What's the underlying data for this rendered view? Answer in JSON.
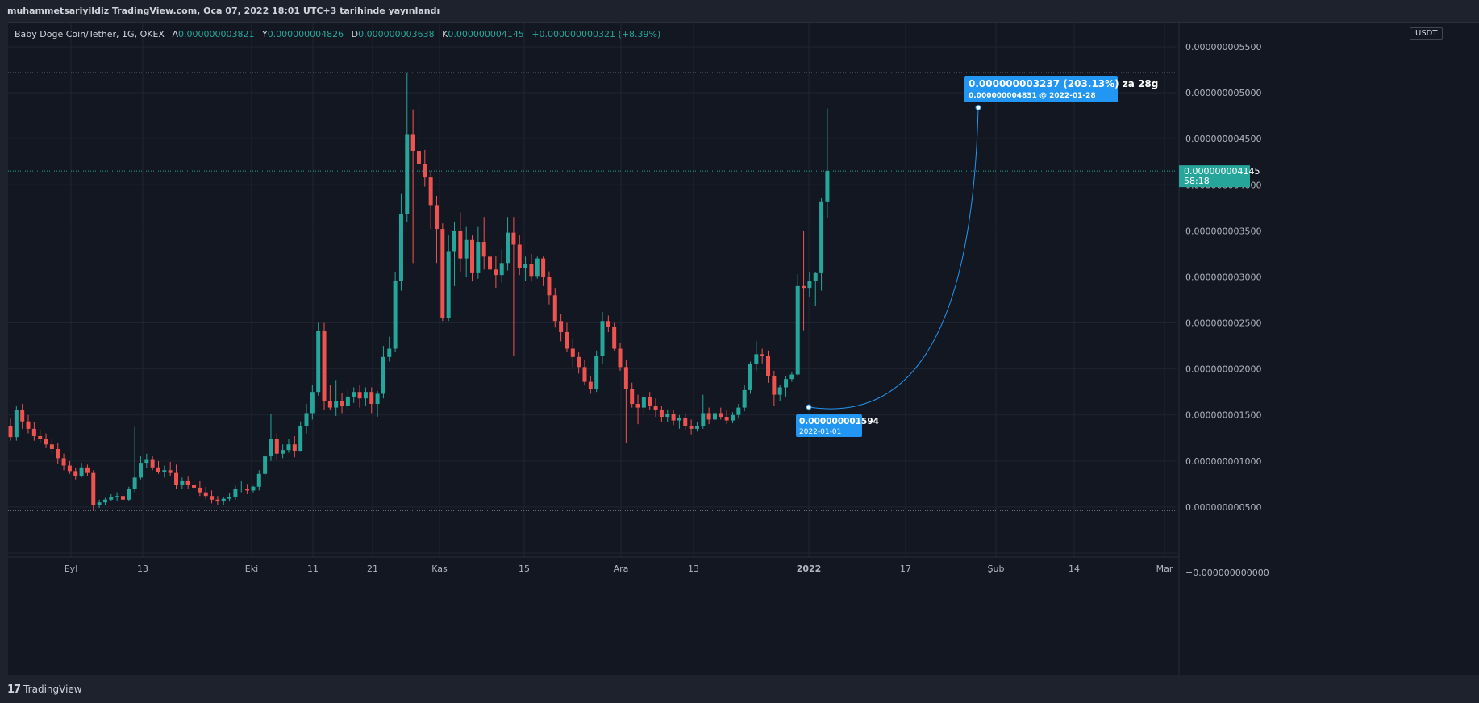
{
  "header": {
    "published_text": "muhammetsariyildiz TradingView.com, Oca 07, 2022 18:01 UTC+3 tarihinde yayınlandı"
  },
  "legend": {
    "symbol": "Baby Doge Coin/Tether, 1G, OKEX",
    "open_label": "A",
    "open": "0.000000003821",
    "high_label": "Y",
    "high": "0.000000004826",
    "low_label": "D",
    "low": "0.000000003638",
    "close_label": "K",
    "close": "0.000000004145",
    "change": "+0.000000000321 (+8.39%)"
  },
  "currency_label": "USDT",
  "footer": {
    "brand": "TradingView"
  },
  "colors": {
    "up": "#26a69a",
    "down": "#ef5350",
    "background": "#131722",
    "grid": "#1f2430",
    "measure": "#2196f3",
    "price_tag": "#26a69a"
  },
  "chart_data": {
    "type": "candlestick",
    "title": "Baby Doge Coin/Tether, 1G, OKEX",
    "x_axis_labels": [
      "Eyl",
      "13",
      "Eki",
      "11",
      "21",
      "Kas",
      "15",
      "Ara",
      "13",
      "2022",
      "17",
      "Şub",
      "14",
      "Mar"
    ],
    "y_axis_labels": [
      "0.000000005500",
      "0.000000005000",
      "0.000000004500",
      "0.000000004000",
      "0.000000003500",
      "0.000000003000",
      "0.000000002500",
      "0.000000002000",
      "0.000000001500",
      "0.000000001000",
      "0.000000000500",
      "−0.000000000000"
    ],
    "y_range_e9": [
      -0.04,
      5.8
    ],
    "last_price": {
      "value": "0.000000004145",
      "countdown": "58:18"
    },
    "high_line_e9": 5.22,
    "low_line_e9": 0.46,
    "ohlc_e9": [
      [
        1.38,
        1.46,
        1.22,
        1.26
      ],
      [
        1.26,
        1.6,
        1.22,
        1.55
      ],
      [
        1.55,
        1.62,
        1.35,
        1.43
      ],
      [
        1.43,
        1.5,
        1.3,
        1.35
      ],
      [
        1.35,
        1.42,
        1.22,
        1.27
      ],
      [
        1.27,
        1.34,
        1.2,
        1.24
      ],
      [
        1.24,
        1.3,
        1.14,
        1.18
      ],
      [
        1.18,
        1.25,
        1.08,
        1.13
      ],
      [
        1.13,
        1.2,
        0.97,
        1.03
      ],
      [
        1.03,
        1.08,
        0.9,
        0.95
      ],
      [
        0.95,
        1.0,
        0.86,
        0.89
      ],
      [
        0.89,
        0.92,
        0.8,
        0.84
      ],
      [
        0.84,
        0.98,
        0.82,
        0.93
      ],
      [
        0.93,
        0.96,
        0.84,
        0.87
      ],
      [
        0.87,
        0.9,
        0.47,
        0.52
      ],
      [
        0.52,
        0.58,
        0.49,
        0.55
      ],
      [
        0.55,
        0.6,
        0.52,
        0.58
      ],
      [
        0.58,
        0.64,
        0.56,
        0.61
      ],
      [
        0.61,
        0.66,
        0.57,
        0.62
      ],
      [
        0.62,
        0.65,
        0.55,
        0.58
      ],
      [
        0.58,
        0.72,
        0.56,
        0.7
      ],
      [
        0.7,
        1.37,
        0.66,
        0.82
      ],
      [
        0.82,
        1.05,
        0.8,
        0.98
      ],
      [
        0.98,
        1.08,
        0.92,
        1.02
      ],
      [
        1.02,
        1.05,
        0.9,
        0.93
      ],
      [
        0.93,
        1.0,
        0.86,
        0.88
      ],
      [
        0.88,
        0.95,
        0.82,
        0.9
      ],
      [
        0.9,
        0.99,
        0.84,
        0.87
      ],
      [
        0.87,
        0.96,
        0.7,
        0.74
      ],
      [
        0.74,
        0.82,
        0.7,
        0.78
      ],
      [
        0.78,
        0.83,
        0.7,
        0.74
      ],
      [
        0.74,
        0.8,
        0.68,
        0.71
      ],
      [
        0.71,
        0.78,
        0.62,
        0.66
      ],
      [
        0.66,
        0.72,
        0.58,
        0.62
      ],
      [
        0.62,
        0.68,
        0.54,
        0.58
      ],
      [
        0.58,
        0.62,
        0.52,
        0.56
      ],
      [
        0.56,
        0.61,
        0.52,
        0.59
      ],
      [
        0.59,
        0.65,
        0.56,
        0.61
      ],
      [
        0.61,
        0.73,
        0.58,
        0.7
      ],
      [
        0.7,
        0.78,
        0.66,
        0.7
      ],
      [
        0.7,
        0.75,
        0.64,
        0.68
      ],
      [
        0.68,
        0.73,
        0.66,
        0.72
      ],
      [
        0.72,
        0.9,
        0.68,
        0.86
      ],
      [
        0.86,
        1.06,
        0.83,
        1.05
      ],
      [
        1.05,
        1.51,
        1.0,
        1.24
      ],
      [
        1.24,
        1.3,
        1.02,
        1.08
      ],
      [
        1.08,
        1.18,
        1.03,
        1.12
      ],
      [
        1.12,
        1.24,
        1.09,
        1.18
      ],
      [
        1.18,
        1.27,
        1.04,
        1.11
      ],
      [
        1.11,
        1.43,
        1.1,
        1.38
      ],
      [
        1.38,
        1.62,
        1.3,
        1.52
      ],
      [
        1.52,
        1.83,
        1.45,
        1.75
      ],
      [
        1.75,
        2.5,
        1.71,
        2.41
      ],
      [
        2.41,
        2.5,
        1.55,
        1.65
      ],
      [
        1.65,
        1.83,
        1.55,
        1.58
      ],
      [
        1.58,
        1.88,
        1.49,
        1.65
      ],
      [
        1.65,
        1.74,
        1.52,
        1.6
      ],
      [
        1.6,
        1.78,
        1.55,
        1.7
      ],
      [
        1.7,
        1.8,
        1.63,
        1.75
      ],
      [
        1.75,
        1.82,
        1.58,
        1.68
      ],
      [
        1.68,
        1.8,
        1.6,
        1.75
      ],
      [
        1.75,
        1.8,
        1.52,
        1.62
      ],
      [
        1.62,
        1.76,
        1.48,
        1.73
      ],
      [
        1.73,
        2.25,
        1.68,
        2.13
      ],
      [
        2.13,
        2.35,
        2.08,
        2.22
      ],
      [
        2.22,
        3.05,
        2.18,
        2.96
      ],
      [
        2.96,
        3.9,
        2.85,
        3.68
      ],
      [
        3.68,
        5.22,
        3.6,
        4.55
      ],
      [
        4.55,
        4.82,
        3.15,
        4.37
      ],
      [
        4.37,
        4.92,
        4.05,
        4.23
      ],
      [
        4.23,
        4.38,
        3.98,
        4.08
      ],
      [
        4.08,
        4.15,
        3.52,
        3.78
      ],
      [
        3.78,
        3.88,
        3.15,
        3.52
      ],
      [
        3.52,
        3.58,
        2.52,
        2.55
      ],
      [
        2.55,
        3.45,
        2.52,
        3.28
      ],
      [
        3.28,
        3.6,
        2.9,
        3.5
      ],
      [
        3.5,
        3.7,
        3.05,
        3.2
      ],
      [
        3.2,
        3.55,
        3.0,
        3.4
      ],
      [
        3.4,
        3.45,
        2.95,
        3.04
      ],
      [
        3.04,
        3.55,
        2.98,
        3.38
      ],
      [
        3.38,
        3.65,
        3.08,
        3.22
      ],
      [
        3.22,
        3.35,
        2.98,
        3.08
      ],
      [
        3.08,
        3.23,
        2.88,
        3.02
      ],
      [
        3.02,
        3.3,
        2.94,
        3.15
      ],
      [
        3.15,
        3.65,
        3.07,
        3.48
      ],
      [
        3.48,
        3.65,
        2.14,
        3.35
      ],
      [
        3.35,
        3.45,
        3.02,
        3.1
      ],
      [
        3.1,
        3.22,
        2.96,
        3.14
      ],
      [
        3.14,
        3.25,
        2.95,
        3.01
      ],
      [
        3.01,
        3.22,
        2.98,
        3.2
      ],
      [
        3.2,
        3.22,
        2.9,
        3.0
      ],
      [
        3.0,
        3.06,
        2.7,
        2.8
      ],
      [
        2.8,
        2.88,
        2.45,
        2.52
      ],
      [
        2.52,
        2.6,
        2.3,
        2.4
      ],
      [
        2.4,
        2.5,
        2.18,
        2.22
      ],
      [
        2.22,
        2.33,
        2.02,
        2.13
      ],
      [
        2.13,
        2.18,
        1.95,
        2.02
      ],
      [
        2.02,
        2.1,
        1.82,
        1.86
      ],
      [
        1.86,
        1.92,
        1.73,
        1.78
      ],
      [
        1.78,
        2.2,
        1.75,
        2.14
      ],
      [
        2.14,
        2.62,
        2.05,
        2.52
      ],
      [
        2.52,
        2.58,
        2.4,
        2.46
      ],
      [
        2.46,
        2.5,
        2.2,
        2.22
      ],
      [
        2.22,
        2.28,
        1.98,
        2.02
      ],
      [
        2.02,
        2.1,
        1.2,
        1.78
      ],
      [
        1.78,
        1.85,
        1.58,
        1.62
      ],
      [
        1.62,
        1.72,
        1.4,
        1.58
      ],
      [
        1.58,
        1.72,
        1.52,
        1.69
      ],
      [
        1.69,
        1.75,
        1.55,
        1.6
      ],
      [
        1.6,
        1.68,
        1.48,
        1.55
      ],
      [
        1.55,
        1.6,
        1.42,
        1.48
      ],
      [
        1.48,
        1.56,
        1.42,
        1.51
      ],
      [
        1.51,
        1.55,
        1.39,
        1.44
      ],
      [
        1.44,
        1.5,
        1.35,
        1.47
      ],
      [
        1.47,
        1.52,
        1.34,
        1.38
      ],
      [
        1.38,
        1.45,
        1.29,
        1.35
      ],
      [
        1.35,
        1.42,
        1.32,
        1.38
      ],
      [
        1.38,
        1.72,
        1.35,
        1.52
      ],
      [
        1.52,
        1.58,
        1.4,
        1.45
      ],
      [
        1.45,
        1.56,
        1.41,
        1.52
      ],
      [
        1.52,
        1.58,
        1.45,
        1.48
      ],
      [
        1.48,
        1.55,
        1.4,
        1.44
      ],
      [
        1.44,
        1.53,
        1.41,
        1.5
      ],
      [
        1.5,
        1.62,
        1.46,
        1.58
      ],
      [
        1.58,
        1.82,
        1.54,
        1.77
      ],
      [
        1.77,
        2.08,
        1.73,
        2.05
      ],
      [
        2.05,
        2.3,
        1.98,
        2.16
      ],
      [
        2.16,
        2.22,
        2.06,
        2.14
      ],
      [
        2.14,
        2.2,
        1.85,
        1.92
      ],
      [
        1.92,
        1.98,
        1.6,
        1.72
      ],
      [
        1.72,
        1.83,
        1.65,
        1.8
      ],
      [
        1.8,
        1.92,
        1.7,
        1.89
      ],
      [
        1.89,
        1.97,
        1.86,
        1.94
      ],
      [
        1.94,
        3.03,
        1.93,
        2.9
      ],
      [
        2.9,
        3.5,
        2.42,
        2.88
      ],
      [
        2.88,
        3.05,
        2.78,
        2.96
      ],
      [
        2.96,
        3.05,
        2.68,
        3.04
      ],
      [
        3.04,
        3.86,
        2.85,
        3.82
      ],
      [
        3.82,
        4.83,
        3.64,
        4.15
      ]
    ],
    "measure": {
      "from": {
        "price": "0.000000001594",
        "date": "2022-01-01",
        "value_e9": 1.594
      },
      "to": {
        "price": "0.000000004831",
        "date": "2022-01-28",
        "value_e9": 4.831
      },
      "change": "0.000000003237 (203.13%) za 28g",
      "detail": "0.000000004831 @ 2022-01-28"
    }
  }
}
